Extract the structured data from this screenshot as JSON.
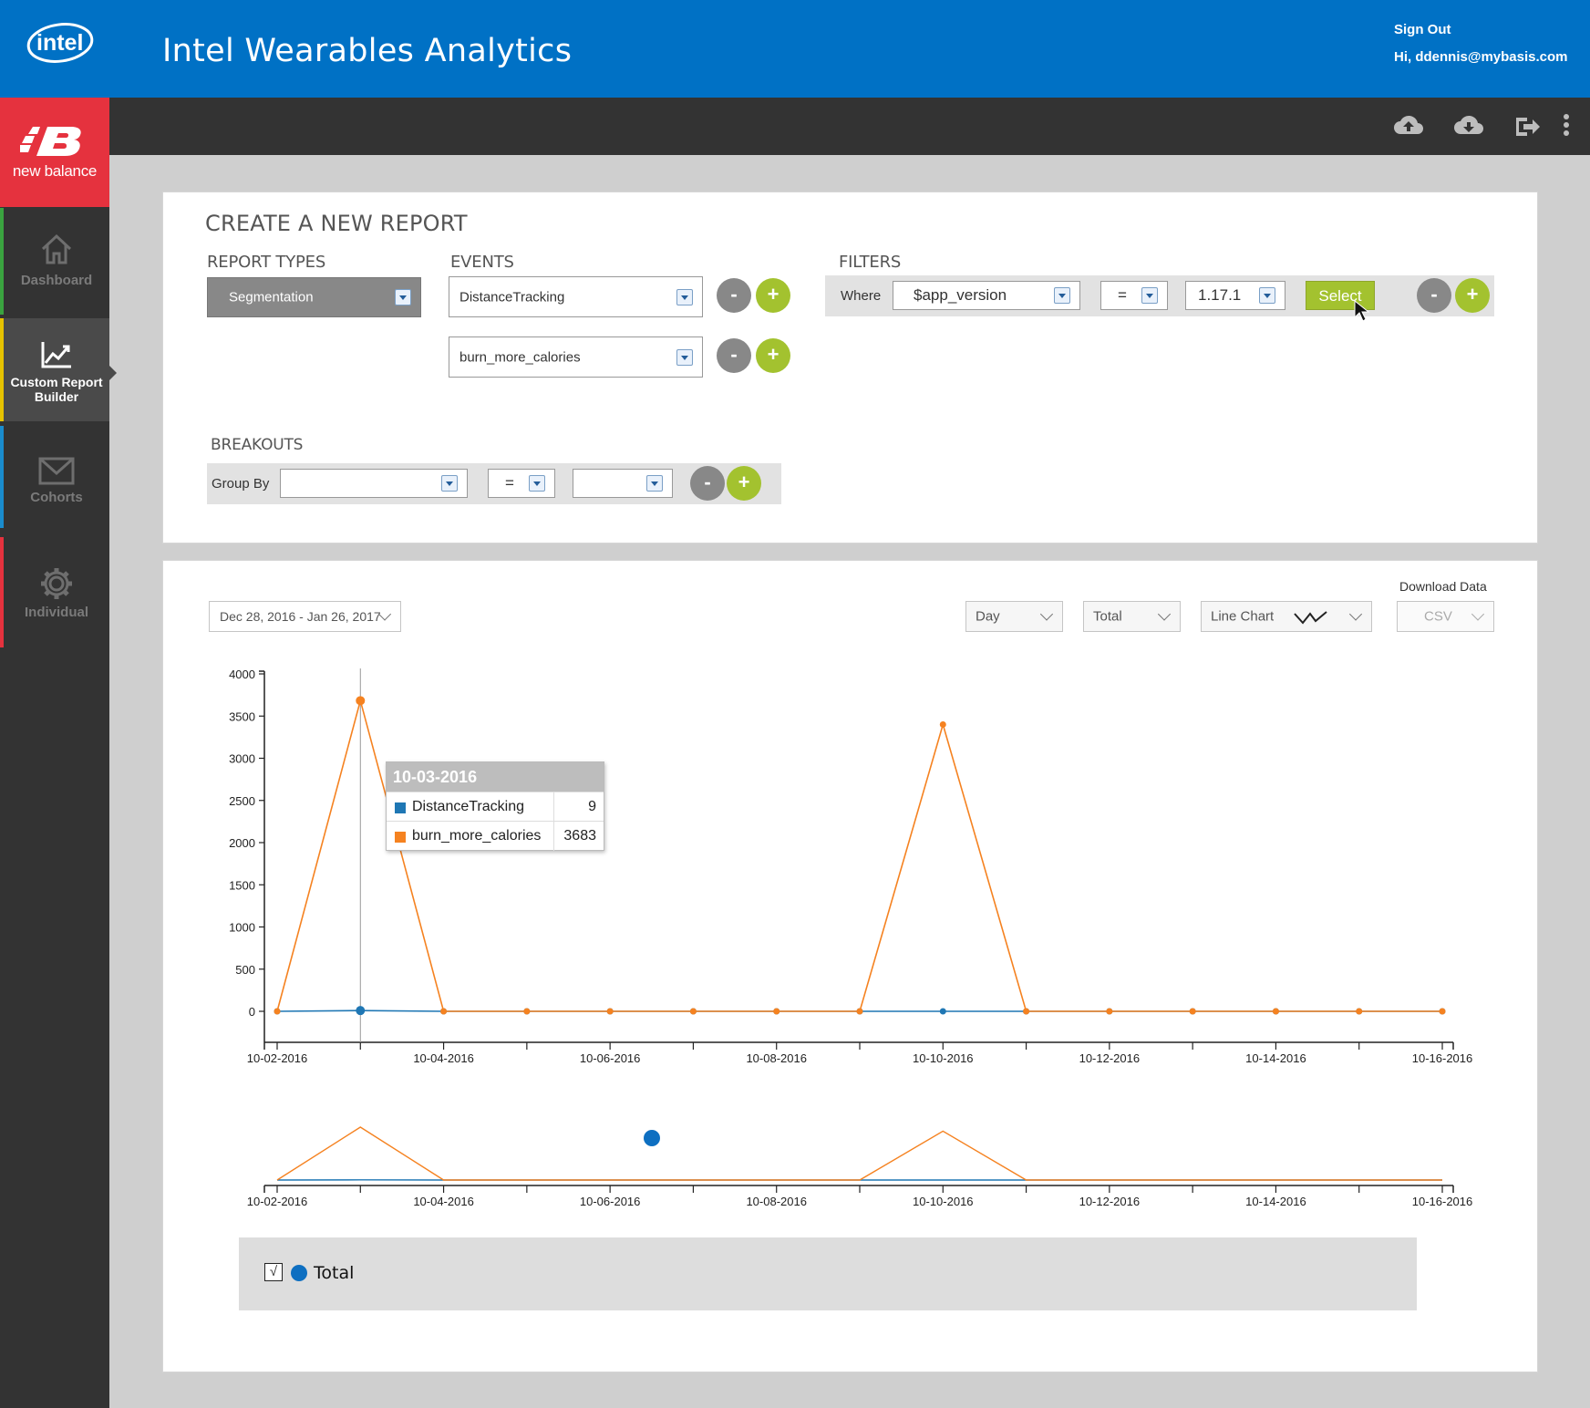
{
  "header": {
    "logo_text": "intel",
    "title": "Intel Wearables Analytics",
    "sign_out": "Sign Out",
    "greeting": "Hi, ddennis@mybasis.com",
    "color": "#0071c5"
  },
  "toolbar": {
    "icons": [
      "cloud-upload-icon",
      "cloud-download-icon",
      "sign-out-icon",
      "more-vertical-icon"
    ]
  },
  "sidebar": {
    "brand": "new balance",
    "brand_color": "#e5323e",
    "items": [
      {
        "label": "Dashboard",
        "icon": "home-icon",
        "accent": "#3aa33f"
      },
      {
        "label": "Custom Report Builder",
        "icon": "chart-icon",
        "accent": "#e6c200",
        "active": true
      },
      {
        "label": "Cohorts",
        "icon": "envelope-icon",
        "accent": "#1a8ccd"
      },
      {
        "label": "Individual",
        "icon": "gear-icon",
        "accent": "#e5323e"
      }
    ]
  },
  "builder": {
    "title": "CREATE A NEW REPORT",
    "report_types_label": "REPORT TYPES",
    "report_type": "Segmentation",
    "events_label": "EVENTS",
    "events": [
      "DistanceTracking",
      "burn_more_calories"
    ],
    "filters_label": "FILTERS",
    "filter": {
      "where": "Where",
      "property": "$app_version",
      "operator": "=",
      "value": "1.17.1",
      "select_btn": "Select"
    },
    "breakouts_label": "BREAKOUTS",
    "breakout": {
      "group_by": "Group By",
      "property": "",
      "operator": "=",
      "value": ""
    },
    "minus": "-",
    "plus": "+"
  },
  "report": {
    "date_range": "Dec 28, 2016 - Jan 26, 2017",
    "interval": "Day",
    "measure": "Total",
    "chart_type": "Line Chart",
    "download_label": "Download Data",
    "download_format": "CSV",
    "tooltip": {
      "date": "10-03-2016",
      "rows": [
        {
          "name": "DistanceTracking",
          "value": "9",
          "color": "#1f77b4"
        },
        {
          "name": "burn_more_calories",
          "value": "3683",
          "color": "#f58220"
        }
      ]
    },
    "legend": {
      "check": "√",
      "label": "Total",
      "color": "#0e6fc1"
    }
  },
  "chart_data": {
    "type": "line",
    "x": [
      "10-02-2016",
      "10-03-2016",
      "10-04-2016",
      "10-05-2016",
      "10-06-2016",
      "10-07-2016",
      "10-08-2016",
      "10-09-2016",
      "10-10-2016",
      "10-11-2016",
      "10-12-2016",
      "10-13-2016",
      "10-14-2016",
      "10-15-2016",
      "10-16-2016"
    ],
    "x_tick_labels": [
      "10-02-2016",
      "10-04-2016",
      "10-06-2016",
      "10-08-2016",
      "10-10-2016",
      "10-12-2016",
      "10-14-2016",
      "10-16-2016"
    ],
    "ylim": [
      0,
      4000
    ],
    "y_ticks": [
      0,
      500,
      1000,
      1500,
      2000,
      2500,
      3000,
      3500,
      4000
    ],
    "series": [
      {
        "name": "DistanceTracking",
        "color": "#1f77b4",
        "values": [
          0,
          9,
          0,
          0,
          0,
          0,
          0,
          0,
          0,
          0,
          0,
          0,
          0,
          0,
          0
        ]
      },
      {
        "name": "burn_more_calories",
        "color": "#f58220",
        "values": [
          0,
          3683,
          0,
          0,
          0,
          0,
          0,
          0,
          3400,
          0,
          0,
          0,
          0,
          0,
          0
        ]
      }
    ],
    "title": "",
    "xlabel": "",
    "ylabel": "",
    "grid": false,
    "overview_brush": true
  }
}
